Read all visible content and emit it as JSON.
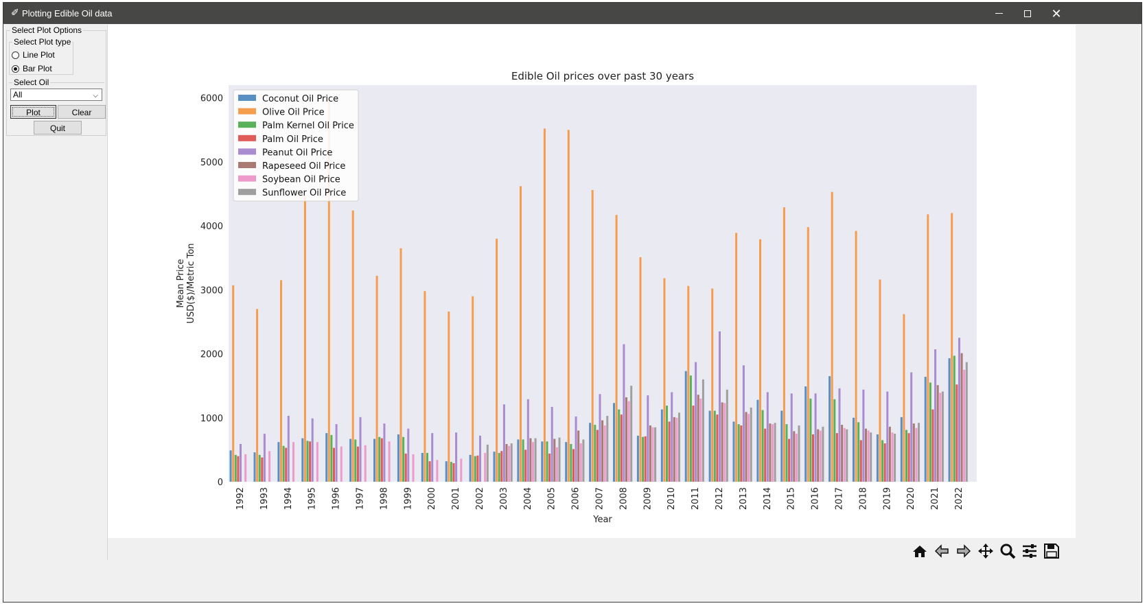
{
  "window": {
    "title": "Plotting Edible Oil data"
  },
  "left_panel": {
    "options_title": "Select Plot Options",
    "plot_type_title": "Select Plot type",
    "plot_types": [
      "Line Plot",
      "Bar Plot"
    ],
    "selected_plot_type": "Bar Plot",
    "oil_title": "Select Oil",
    "oil_value": "All",
    "plot_button": "Plot",
    "clear_button": "Clear",
    "quit_button": "Quit"
  },
  "toolbar": {
    "icons": [
      "home-icon",
      "back-arrow-icon",
      "forward-arrow-icon",
      "pan-icon",
      "zoom-icon",
      "configure-subplots-icon",
      "save-icon"
    ]
  },
  "chart_data": {
    "type": "bar",
    "title": "Edible Oil prices over past 30 years",
    "xlabel": "Year",
    "ylabel_lines": [
      "Mean Price",
      "USD($)/Metric Ton"
    ],
    "ylim": [
      0,
      6200
    ],
    "yticks": [
      0,
      1000,
      2000,
      3000,
      4000,
      5000,
      6000
    ],
    "legend_position": "upper-left",
    "grid": false,
    "categories": [
      "1992",
      "1993",
      "1994",
      "1995",
      "1996",
      "1997",
      "1998",
      "1999",
      "2000",
      "2001",
      "2002",
      "2003",
      "2004",
      "2005",
      "2006",
      "2007",
      "2008",
      "2009",
      "2010",
      "2011",
      "2012",
      "2013",
      "2014",
      "2015",
      "2016",
      "2017",
      "2018",
      "2019",
      "2020",
      "2021",
      "2022"
    ],
    "series": [
      {
        "name": "Coconut Oil Price",
        "color": "#5a8fc4",
        "values": [
          490,
          460,
          620,
          680,
          760,
          670,
          670,
          740,
          450,
          320,
          420,
          470,
          660,
          630,
          620,
          920,
          1230,
          720,
          1130,
          1730,
          1110,
          940,
          1280,
          1110,
          1490,
          1650,
          1000,
          740,
          1010,
          1640,
          1930
        ]
      },
      {
        "name": "Olive Oil Price",
        "color": "#f59d4f",
        "values": [
          3070,
          2700,
          3150,
          4470,
          5960,
          4240,
          3220,
          3650,
          2980,
          2660,
          2900,
          3800,
          4620,
          5520,
          5500,
          4560,
          4170,
          3510,
          3180,
          3060,
          3020,
          3890,
          3790,
          4290,
          3980,
          4530,
          3920,
          3160,
          2620,
          4180,
          4200
        ]
      },
      {
        "name": "Palm Kernel Oil Price",
        "color": "#59b259",
        "values": [
          420,
          420,
          560,
          640,
          730,
          660,
          700,
          700,
          450,
          310,
          400,
          450,
          660,
          630,
          590,
          890,
          1130,
          700,
          1190,
          1660,
          1110,
          900,
          1120,
          900,
          1300,
          1290,
          930,
          650,
          810,
          1550,
          1970
        ]
      },
      {
        "name": "Palm Oil Price",
        "color": "#e05a5a",
        "values": [
          400,
          380,
          530,
          630,
          530,
          550,
          680,
          440,
          320,
          290,
          410,
          480,
          500,
          440,
          510,
          810,
          1050,
          710,
          940,
          1190,
          1050,
          880,
          830,
          670,
          740,
          760,
          650,
          600,
          760,
          1130,
          1520
        ]
      },
      {
        "name": "Peanut Oil Price",
        "color": "#a98bd0",
        "values": [
          590,
          750,
          1030,
          990,
          900,
          1010,
          910,
          830,
          760,
          770,
          720,
          1210,
          1290,
          1170,
          1020,
          1370,
          2150,
          1350,
          1400,
          1870,
          2350,
          1820,
          1400,
          1380,
          1380,
          1460,
          1440,
          1410,
          1710,
          2070,
          2250
        ]
      },
      {
        "name": "Rapeseed Oil Price",
        "color": "#a97a72",
        "values": [
          0,
          0,
          0,
          0,
          0,
          0,
          0,
          0,
          0,
          0,
          0,
          590,
          680,
          670,
          800,
          960,
          1320,
          880,
          1010,
          1360,
          1240,
          1090,
          910,
          790,
          820,
          890,
          830,
          860,
          910,
          1510,
          2010
        ]
      },
      {
        "name": "Soybean Oil Price",
        "color": "#ee9acb",
        "values": [
          430,
          480,
          620,
          620,
          550,
          570,
          630,
          430,
          340,
          360,
          450,
          560,
          620,
          540,
          600,
          880,
          1260,
          850,
          1000,
          1300,
          1230,
          1060,
          900,
          750,
          800,
          840,
          800,
          770,
          840,
          1390,
          1750
        ]
      },
      {
        "name": "Sunflower Oil Price",
        "color": "#9f9f9f",
        "values": [
          0,
          0,
          0,
          0,
          0,
          0,
          0,
          0,
          0,
          0,
          580,
          600,
          680,
          690,
          660,
          1030,
          1500,
          850,
          1080,
          1600,
          1440,
          1160,
          920,
          880,
          860,
          820,
          770,
          750,
          920,
          1410,
          1870
        ]
      }
    ]
  }
}
